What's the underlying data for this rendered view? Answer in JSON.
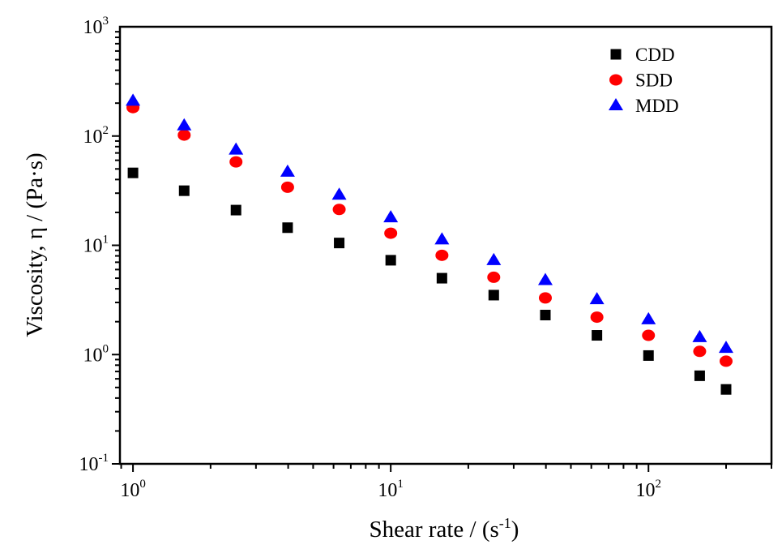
{
  "chart_data": {
    "type": "scatter",
    "xlabel": "Shear rate / (s",
    "xlabel_sup": "-1",
    "xlabel_end": ")",
    "ylabel": "Viscosity, η / (Pa·s)",
    "xscale": "log",
    "yscale": "log",
    "xlim": [
      0.89,
      300
    ],
    "ylim": [
      0.1,
      1000
    ],
    "x_ticks": [
      {
        "base": "10",
        "exp": "0",
        "value": 1
      },
      {
        "base": "10",
        "exp": "1",
        "value": 10
      },
      {
        "base": "10",
        "exp": "2",
        "value": 100
      }
    ],
    "y_ticks": [
      {
        "base": "10",
        "exp": "-1",
        "value": 0.1
      },
      {
        "base": "10",
        "exp": "0",
        "value": 1
      },
      {
        "base": "10",
        "exp": "1",
        "value": 10
      },
      {
        "base": "10",
        "exp": "2",
        "value": 100
      },
      {
        "base": "10",
        "exp": "3",
        "value": 1000
      }
    ],
    "grid": false,
    "legend_position": "top-right",
    "x": [
      1,
      1.58,
      2.51,
      3.98,
      6.31,
      10,
      15.8,
      25.1,
      39.8,
      63.1,
      100,
      158,
      200
    ],
    "series": [
      {
        "name": "CDD",
        "marker": "square",
        "color": "#000000",
        "values": [
          46,
          31.6,
          21,
          14.5,
          10.5,
          7.3,
          5.0,
          3.5,
          2.3,
          1.5,
          0.98,
          0.64,
          0.48
        ]
      },
      {
        "name": "SDD",
        "marker": "circle",
        "color": "#ff0000",
        "values": [
          182,
          102,
          58,
          34,
          21.3,
          12.9,
          8.1,
          5.1,
          3.3,
          2.2,
          1.5,
          1.07,
          0.87
        ]
      },
      {
        "name": "MDD",
        "marker": "triangle",
        "color": "#0000ff",
        "values": [
          210,
          125,
          75,
          47,
          29,
          18,
          11.3,
          7.3,
          4.8,
          3.2,
          2.1,
          1.44,
          1.15
        ]
      }
    ]
  }
}
